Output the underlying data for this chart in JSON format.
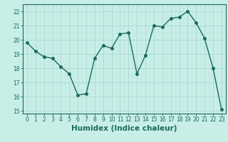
{
  "x": [
    0,
    1,
    2,
    3,
    4,
    5,
    6,
    7,
    8,
    9,
    10,
    11,
    12,
    13,
    14,
    15,
    16,
    17,
    18,
    19,
    20,
    21,
    22,
    23
  ],
  "y": [
    19.8,
    19.2,
    18.8,
    18.7,
    18.1,
    17.6,
    16.1,
    16.2,
    18.7,
    19.6,
    19.4,
    20.4,
    20.5,
    17.6,
    18.9,
    21.0,
    20.9,
    21.5,
    21.6,
    22.0,
    21.2,
    20.1,
    18.0,
    15.1
  ],
  "line_color": "#1a6b5a",
  "marker_color": "#1a6b5a",
  "bg_color": "#c8eee8",
  "grid_color": "#a8d8d0",
  "grid_minor_color": "#c0e4de",
  "xlabel": "Humidex (Indice chaleur)",
  "ylim": [
    14.8,
    22.5
  ],
  "xlim": [
    -0.5,
    23.5
  ],
  "yticks": [
    15,
    16,
    17,
    18,
    19,
    20,
    21,
    22
  ],
  "xticks": [
    0,
    1,
    2,
    3,
    4,
    5,
    6,
    7,
    8,
    9,
    10,
    11,
    12,
    13,
    14,
    15,
    16,
    17,
    18,
    19,
    20,
    21,
    22,
    23
  ],
  "tick_fontsize": 5.5,
  "xlabel_fontsize": 7.5,
  "linewidth": 1.0,
  "markersize": 2.5
}
